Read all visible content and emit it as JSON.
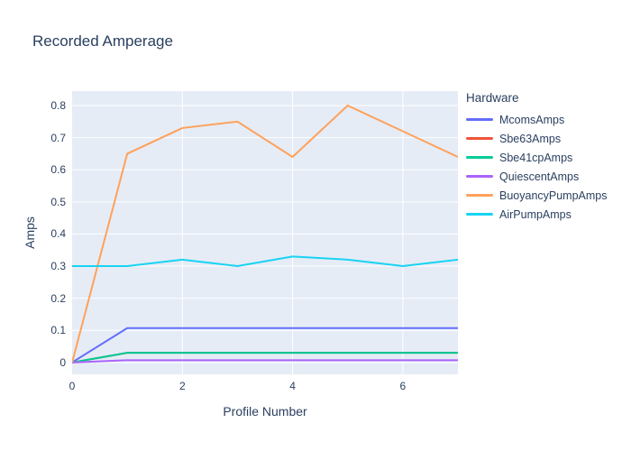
{
  "chart_data": {
    "type": "line",
    "title": "Recorded Amperage",
    "xlabel": "Profile Number",
    "ylabel": "Amps",
    "legend_title": "Hardware",
    "legend_position": "right",
    "grid": true,
    "x": [
      0,
      1,
      2,
      3,
      4,
      5,
      6,
      7
    ],
    "series": [
      {
        "name": "McomsAmps",
        "color": "#636EFA",
        "values": [
          0,
          0.107,
          0.107,
          0.107,
          0.107,
          0.107,
          0.107,
          0.107
        ]
      },
      {
        "name": "Sbe63Amps",
        "color": "#EF553B",
        "values": [
          0,
          0.03,
          0.03,
          0.03,
          0.03,
          0.03,
          0.03,
          0.03
        ]
      },
      {
        "name": "Sbe41cpAmps",
        "color": "#00CC96",
        "values": [
          0,
          0.03,
          0.03,
          0.03,
          0.03,
          0.03,
          0.03,
          0.03
        ]
      },
      {
        "name": "QuiescentAmps",
        "color": "#AB63FA",
        "values": [
          0,
          0.007,
          0.007,
          0.007,
          0.007,
          0.007,
          0.007,
          0.007
        ]
      },
      {
        "name": "BuoyancyPumpAmps",
        "color": "#FFA15A",
        "values": [
          0,
          0.65,
          0.73,
          0.75,
          0.64,
          0.8,
          0.72,
          0.64
        ]
      },
      {
        "name": "AirPumpAmps",
        "color": "#19D3F3",
        "values": [
          0.3,
          0.3,
          0.32,
          0.3,
          0.33,
          0.32,
          0.3,
          0.32
        ]
      }
    ],
    "xlim": [
      0,
      7
    ],
    "ylim": [
      0,
      0.8
    ],
    "xticks": {
      "values": [
        0,
        2,
        4,
        6
      ],
      "labels": [
        "0",
        "2",
        "4",
        "6"
      ]
    },
    "yticks": {
      "values": [
        0,
        0.1,
        0.2,
        0.3,
        0.4,
        0.5,
        0.6,
        0.7,
        0.8
      ],
      "labels": [
        "0",
        "0.1",
        "0.2",
        "0.3",
        "0.4",
        "0.5",
        "0.6",
        "0.7",
        "0.8"
      ]
    },
    "plot_bgcolor": "#E5ECF6",
    "paper_bgcolor": "#FFFFFF",
    "grid_color": "#FFFFFF",
    "text_color": "#2A3F5F"
  }
}
